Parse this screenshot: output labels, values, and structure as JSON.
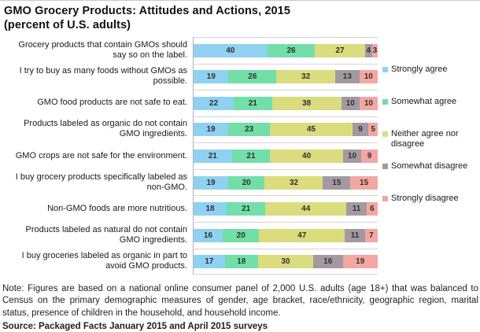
{
  "title": {
    "line1": "GMO Grocery Products: Attitudes and Actions, 2015",
    "line2": "(percent of U.S. adults)"
  },
  "chart_data": {
    "type": "bar",
    "stacked": true,
    "orientation": "horizontal",
    "value_labels": true,
    "legend_position": "right",
    "xlim": [
      0,
      100
    ],
    "categories": [
      "Grocery products that contain GMOs should say so on the label.",
      "I try to buy as many foods without GMOs as possible.",
      "GMO food products are not safe to eat.",
      "Products labeled as organic do not contain GMO ingredients.",
      "GMO crops are not safe for the environment.",
      "I buy grocery products specifically labeled as non-GMO.",
      "Non-GMO foods are more nutritious.",
      "Products labeled as natural do not contain GMO ingredients.",
      "I buy groceries labeled as organic in part to avoid GMO products."
    ],
    "series": [
      {
        "name": "Strongly agree",
        "color": "#8FD1F0",
        "values": [
          40,
          19,
          22,
          19,
          21,
          19,
          18,
          16,
          17
        ]
      },
      {
        "name": "Somewhat agree",
        "color": "#72DEA8",
        "values": [
          26,
          26,
          21,
          23,
          21,
          20,
          21,
          20,
          18
        ]
      },
      {
        "name": "Neither agree nor disagree",
        "color": "#DADC7E",
        "values": [
          27,
          32,
          38,
          45,
          40,
          32,
          44,
          47,
          30
        ]
      },
      {
        "name": "Somewhat disagree",
        "color": "#A29AA0",
        "values": [
          4,
          13,
          10,
          9,
          10,
          15,
          11,
          11,
          16
        ]
      },
      {
        "name": "Strongly disagree",
        "color": "#F3A7A2",
        "values": [
          3,
          10,
          10,
          5,
          9,
          15,
          6,
          7,
          19
        ]
      }
    ]
  },
  "note": "Note: Figures are based on a national online consumer panel of 2,000 U.S. adults (age 18+) that was balanced to Census on the primary demographic measures of gender, age bracket, race/ethnicity, geographic region, marital status, presence of children in the household, and household income.",
  "source": "Source: Packaged Facts January 2015 and April 2015 surveys"
}
